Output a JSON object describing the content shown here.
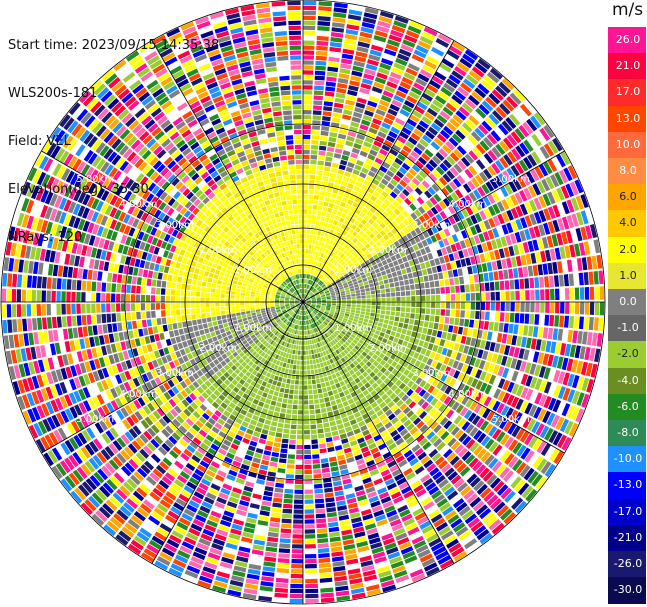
{
  "info": {
    "start_time": "Start time: 2023/09/15 14:35:38",
    "instrument": "WLS200s-181",
    "field": "Field: VEL",
    "elevation": "Elevation(deg): 35.30",
    "nrays": "NRays: 120"
  },
  "colorbar": {
    "unit": "m/s",
    "ticks": [
      "26.0",
      "21.0",
      "17.0",
      "13.0",
      "10.0",
      "8.0",
      "6.0",
      "4.0",
      "2.0",
      "1.0",
      "0.0",
      "-1.0",
      "-2.0",
      "-4.0",
      "-6.0",
      "-8.0",
      "-10.0",
      "-13.0",
      "-17.0",
      "-21.0",
      "-26.0",
      "-30.0"
    ],
    "colors": [
      "#ff1493",
      "#ff0040",
      "#ff2a2a",
      "#ff4500",
      "#ff6a3d",
      "#ff8c42",
      "#ffa500",
      "#ffc800",
      "#ffff00",
      "#e6e633",
      "#7f7f7f",
      "#666666",
      "#9acd32",
      "#6b8e23",
      "#228b22",
      "#2e8b57",
      "#1e90ff",
      "#0000ff",
      "#0000cd",
      "#00008b",
      "#191970",
      "#0a0a50"
    ]
  },
  "range_rings": {
    "labels": [
      "1.00km",
      "2.00km",
      "3.00km",
      "4.00km",
      "5.00km"
    ]
  },
  "field_palette": {
    "inner": [
      "#ffff00",
      "#ffee00",
      "#f5e400",
      "#808080",
      "#777777",
      "#9acd32",
      "#8fc22a",
      "#6b8e23"
    ],
    "outer": [
      "#ff1493",
      "#ff0040",
      "#ff4500",
      "#ffa500",
      "#ffff00",
      "#7f7f7f",
      "#9acd32",
      "#228b22",
      "#1e90ff",
      "#0000ff",
      "#00008b",
      "#191970",
      "#ffffff",
      "#ff69b4"
    ]
  }
}
